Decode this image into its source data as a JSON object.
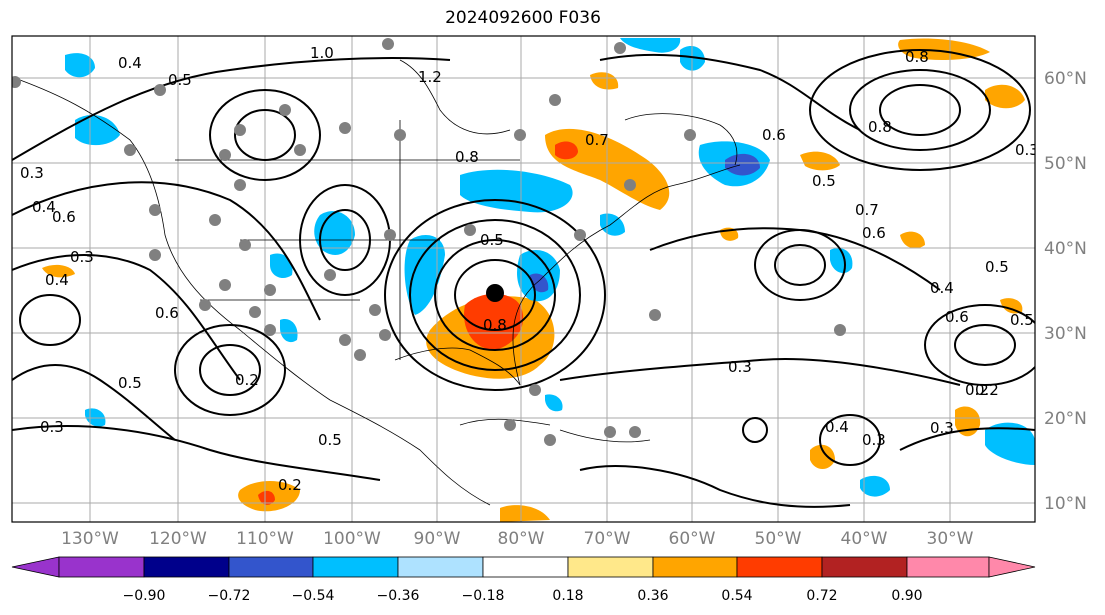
{
  "title": "2024092600 F036",
  "lon_labels": [
    "130°W",
    "120°W",
    "110°W",
    "100°W",
    "90°W",
    "80°W",
    "70°W",
    "60°W",
    "50°W",
    "40°W",
    "30°W"
  ],
  "lat_labels": [
    "60°N",
    "50°N",
    "40°N",
    "30°N",
    "20°N",
    "10°N"
  ],
  "colorbar": {
    "ticks": [
      "−0.90",
      "−0.72",
      "−0.54",
      "−0.36",
      "−0.18",
      "0.18",
      "0.36",
      "0.54",
      "0.72",
      "0.90"
    ],
    "colors": [
      "#9933cc",
      "#00008b",
      "#3355cc",
      "#00bfff",
      "#aee2ff",
      "#ffffff",
      "#ffe88a",
      "#ffa500",
      "#ff3c00",
      "#b22222",
      "#ff88aa"
    ]
  },
  "contour_labels": [
    {
      "text": "0.4"
    },
    {
      "text": "0.5"
    },
    {
      "text": "0.6"
    },
    {
      "text": "0.3"
    },
    {
      "text": "0.4"
    },
    {
      "text": "0.6"
    },
    {
      "text": "0.3"
    },
    {
      "text": "0.4"
    },
    {
      "text": "0.7"
    },
    {
      "text": "0.8"
    },
    {
      "text": "0.5"
    },
    {
      "text": "0.2"
    },
    {
      "text": "0.5"
    },
    {
      "text": "0.2"
    },
    {
      "text": "0.3"
    },
    {
      "text": "0.7"
    },
    {
      "text": "0.6"
    },
    {
      "text": "0.5"
    },
    {
      "text": "0.3"
    },
    {
      "text": "0.2"
    },
    {
      "text": "0.6"
    },
    {
      "text": "0.8"
    },
    {
      "text": "0.3"
    },
    {
      "text": "0.5"
    },
    {
      "text": "0.4"
    },
    {
      "text": "0.6"
    },
    {
      "text": "0.3"
    },
    {
      "text": "0.2"
    },
    {
      "text": "0.4"
    },
    {
      "text": "0.3"
    },
    {
      "text": "0.8"
    },
    {
      "text": "1.0"
    },
    {
      "text": "1.2"
    },
    {
      "text": "0.8"
    },
    {
      "text": "0.5"
    },
    {
      "text": "0.5"
    }
  ],
  "legend_icons": {
    "storm_center": "storm-center-marker",
    "station": "observation-dot"
  }
}
